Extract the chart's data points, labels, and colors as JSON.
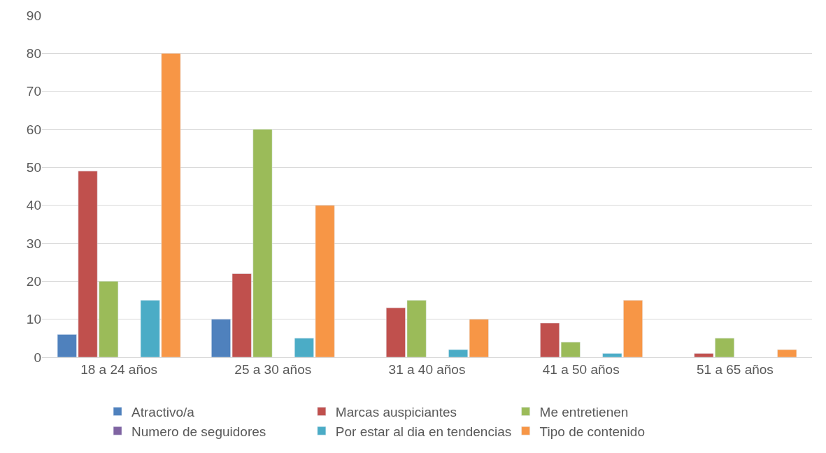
{
  "chart_data": {
    "type": "bar",
    "categories": [
      "18 a 24 años",
      "25 a 30 años",
      "31 a 40 años",
      "41 a 50 años",
      "51 a 65 años"
    ],
    "series": [
      {
        "name": "Atractivo/a",
        "color": "#4f81bd",
        "values": [
          6,
          10,
          null,
          null,
          null
        ]
      },
      {
        "name": "Marcas auspiciantes",
        "color": "#c0504d",
        "values": [
          49,
          22,
          13,
          9,
          1
        ]
      },
      {
        "name": "Me entretienen",
        "color": "#9bbb59",
        "values": [
          20,
          60,
          15,
          4,
          5
        ]
      },
      {
        "name": "Numero de seguidores",
        "color": "#8064a2",
        "values": [
          null,
          null,
          null,
          null,
          null
        ]
      },
      {
        "name": "Por estar al dia en tendencias",
        "color": "#4bacc6",
        "values": [
          15,
          5,
          2,
          1,
          null
        ]
      },
      {
        "name": "Tipo de contenido",
        "color": "#f79646",
        "values": [
          80,
          40,
          10,
          15,
          2
        ]
      }
    ],
    "ylim": [
      0,
      90
    ],
    "yticks": [
      0,
      10,
      20,
      30,
      40,
      50,
      60,
      70,
      80,
      90
    ],
    "grid": "y",
    "legend": "bottom"
  }
}
